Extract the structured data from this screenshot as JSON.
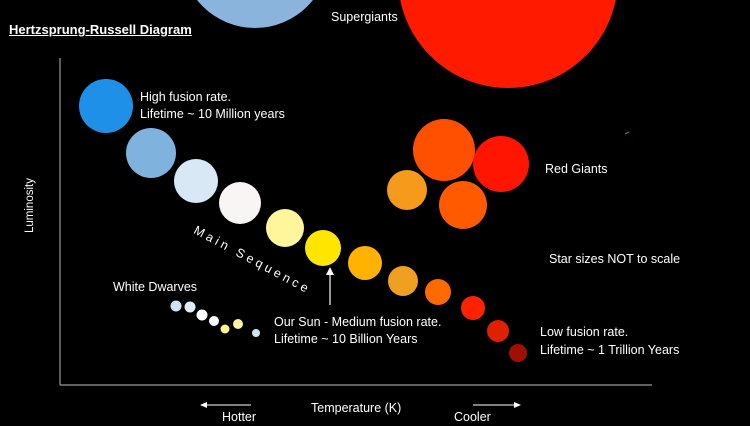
{
  "title": "Hertzsprung-Russell Diagram",
  "y_axis_label": "Luminosity",
  "x_axis_label": "Temperature (K)",
  "direction_left": "Hotter",
  "direction_right": "Cooler",
  "labels": {
    "supergiants": "Supergiants",
    "high_fusion_line1": "High fusion rate.",
    "high_fusion_line2": "Lifetime ~ 10 Million years",
    "red_giants": "Red Giants",
    "main_sequence": "Main Sequence",
    "star_sizes_note": "Star sizes NOT to scale",
    "white_dwarves": "White Dwarves",
    "our_sun_line1": "Our Sun - Medium fusion rate.",
    "our_sun_line2": "Lifetime ~ 10 Billion Years",
    "low_fusion_line1": "Low fusion rate.",
    "low_fusion_line2": "Lifetime ~ 1 Trillion Years"
  },
  "star_groups": {
    "supergiants": [
      "#8ab4dc",
      "#ff1a00"
    ],
    "main_sequence": [
      "#1e90e8",
      "#7fb3de",
      "#d9e8f5",
      "#faf5f5",
      "#fff59a",
      "#ffe600",
      "#ffb300",
      "#f0a020",
      "#ff6a00",
      "#ff2200",
      "#e02000",
      "#a01000"
    ],
    "red_giants": [
      "#ff5000",
      "#ff1500",
      "#f59a1a",
      "#ff5a00"
    ],
    "white_dwarves": [
      "#cfe3f5",
      "#e2ecf6",
      "#ffffff",
      "#ffffff",
      "#fff58a",
      "#fff2a0"
    ]
  }
}
